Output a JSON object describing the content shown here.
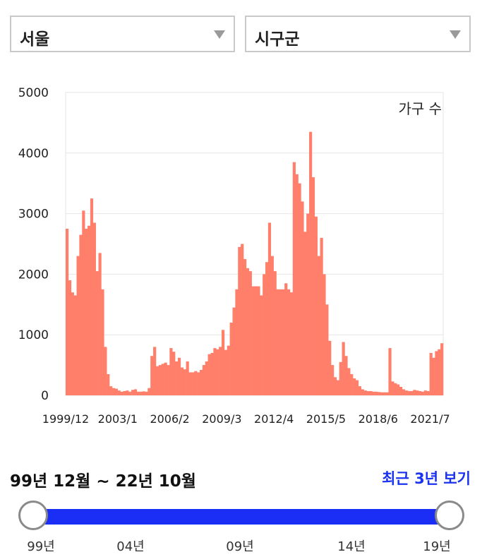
{
  "filters": {
    "region": {
      "selected": "서울"
    },
    "district": {
      "selected": "시구군"
    }
  },
  "chart_data": {
    "type": "bar",
    "series": [
      {
        "name": "가구 수"
      }
    ],
    "legend": "top-right",
    "ylim": [
      0,
      5000
    ],
    "yticks": [
      "0",
      "1000",
      "2000",
      "3000",
      "4000",
      "5000"
    ],
    "xticks": [
      "1999/12",
      "2003/1",
      "2006/2",
      "2009/3",
      "2012/4",
      "2015/5",
      "2018/6",
      "2021/7"
    ],
    "grid": true,
    "colors": {
      "bar": "#ff7f6a",
      "highlight": "#ffb3a5",
      "grid": "#e6e6e6"
    },
    "points": [
      [
        "1999/12",
        2750
      ],
      [
        "2000/2",
        1900
      ],
      [
        "2000/4",
        1700
      ],
      [
        "2000/6",
        1650
      ],
      [
        "2000/8",
        2300
      ],
      [
        "2000/10",
        2650
      ],
      [
        "2000/12",
        3050
      ],
      [
        "2001/2",
        2750
      ],
      [
        "2001/4",
        2800
      ],
      [
        "2001/6",
        3250
      ],
      [
        "2001/8",
        2850
      ],
      [
        "2001/10",
        2050
      ],
      [
        "2001/12",
        2350
      ],
      [
        "2002/2",
        1750
      ],
      [
        "2002/4",
        800
      ],
      [
        "2002/6",
        350
      ],
      [
        "2002/8",
        150
      ],
      [
        "2002/10",
        120
      ],
      [
        "2002/12",
        110
      ],
      [
        "2003/2",
        80
      ],
      [
        "2003/4",
        60
      ],
      [
        "2003/6",
        70
      ],
      [
        "2003/8",
        80
      ],
      [
        "2003/10",
        60
      ],
      [
        "2003/12",
        90
      ],
      [
        "2004/2",
        100
      ],
      [
        "2004/4",
        60
      ],
      [
        "2004/6",
        60
      ],
      [
        "2004/8",
        65
      ],
      [
        "2004/10",
        60
      ],
      [
        "2004/12",
        120
      ],
      [
        "2005/2",
        650
      ],
      [
        "2005/4",
        800
      ],
      [
        "2005/6",
        480
      ],
      [
        "2005/8",
        500
      ],
      [
        "2005/10",
        520
      ],
      [
        "2005/12",
        540
      ],
      [
        "2006/2",
        500
      ],
      [
        "2006/4",
        780
      ],
      [
        "2006/6",
        720
      ],
      [
        "2006/8",
        560
      ],
      [
        "2006/10",
        620
      ],
      [
        "2006/12",
        460
      ],
      [
        "2007/2",
        430
      ],
      [
        "2007/4",
        560
      ],
      [
        "2007/6",
        380
      ],
      [
        "2007/8",
        380
      ],
      [
        "2007/10",
        400
      ],
      [
        "2007/12",
        380
      ],
      [
        "2008/2",
        420
      ],
      [
        "2008/4",
        500
      ],
      [
        "2008/6",
        560
      ],
      [
        "2008/8",
        680
      ],
      [
        "2008/10",
        700
      ],
      [
        "2008/12",
        780
      ],
      [
        "2009/2",
        760
      ],
      [
        "2009/4",
        800
      ],
      [
        "2009/6",
        1080
      ],
      [
        "2009/8",
        750
      ],
      [
        "2009/10",
        820
      ],
      [
        "2009/12",
        1200
      ],
      [
        "2010/2",
        1450
      ],
      [
        "2010/4",
        1750
      ],
      [
        "2010/6",
        2450
      ],
      [
        "2010/8",
        2500
      ],
      [
        "2010/10",
        2250
      ],
      [
        "2010/12",
        2100
      ],
      [
        "2011/2",
        2050
      ],
      [
        "2011/4",
        1800
      ],
      [
        "2011/6",
        1800
      ],
      [
        "2011/8",
        1800
      ],
      [
        "2011/10",
        1650
      ],
      [
        "2011/12",
        2000
      ],
      [
        "2012/2",
        2200
      ],
      [
        "2012/4",
        2850
      ],
      [
        "2012/6",
        2300
      ],
      [
        "2012/8",
        2050
      ],
      [
        "2012/10",
        1750
      ],
      [
        "2012/12",
        1750
      ],
      [
        "2013/2",
        1750
      ],
      [
        "2013/4",
        1850
      ],
      [
        "2013/6",
        1750
      ],
      [
        "2013/8",
        1700
      ],
      [
        "2013/10",
        3850
      ],
      [
        "2013/12",
        3650
      ],
      [
        "2014/2",
        3500
      ],
      [
        "2014/4",
        3200
      ],
      [
        "2014/6",
        2700
      ],
      [
        "2014/8",
        3000
      ],
      [
        "2014/10",
        4350
      ],
      [
        "2014/12",
        3600
      ],
      [
        "2015/2",
        2950
      ],
      [
        "2015/4",
        2300
      ],
      [
        "2015/6",
        2600
      ],
      [
        "2015/8",
        2000
      ],
      [
        "2015/10",
        1500
      ],
      [
        "2015/12",
        900
      ],
      [
        "2016/2",
        500
      ],
      [
        "2016/4",
        300
      ],
      [
        "2016/6",
        250
      ],
      [
        "2016/8",
        550
      ],
      [
        "2016/10",
        880
      ],
      [
        "2016/12",
        650
      ],
      [
        "2017/2",
        450
      ],
      [
        "2017/4",
        350
      ],
      [
        "2017/6",
        280
      ],
      [
        "2017/8",
        250
      ],
      [
        "2017/10",
        150
      ],
      [
        "2017/12",
        100
      ],
      [
        "2018/2",
        80
      ],
      [
        "2018/4",
        70
      ],
      [
        "2018/6",
        70
      ],
      [
        "2018/8",
        60
      ],
      [
        "2018/10",
        60
      ],
      [
        "2018/12",
        55
      ],
      [
        "2019/2",
        50
      ],
      [
        "2019/4",
        50
      ],
      [
        "2019/6",
        50
      ],
      [
        "2019/8",
        780
      ],
      [
        "2019/10",
        230
      ],
      [
        "2019/12",
        200
      ],
      [
        "2020/2",
        180
      ],
      [
        "2020/4",
        140
      ],
      [
        "2020/6",
        100
      ],
      [
        "2020/8",
        80
      ],
      [
        "2020/10",
        70
      ],
      [
        "2020/12",
        70
      ],
      [
        "2021/2",
        90
      ],
      [
        "2021/4",
        80
      ],
      [
        "2021/6",
        70
      ],
      [
        "2021/8",
        60
      ],
      [
        "2021/10",
        80
      ],
      [
        "2021/12",
        70
      ],
      [
        "2022/2",
        700
      ],
      [
        "2022/4",
        620
      ],
      [
        "2022/6",
        730
      ],
      [
        "2022/8",
        760
      ],
      [
        "2022/10",
        860
      ]
    ]
  },
  "range": {
    "label": "99년 12월 ~ 22년 10월",
    "recent_link": "최근 3년 보기",
    "start_fraction": 0,
    "end_fraction": 1,
    "ticks": [
      "99년",
      "04년",
      "09년",
      "14년",
      "19년"
    ]
  }
}
